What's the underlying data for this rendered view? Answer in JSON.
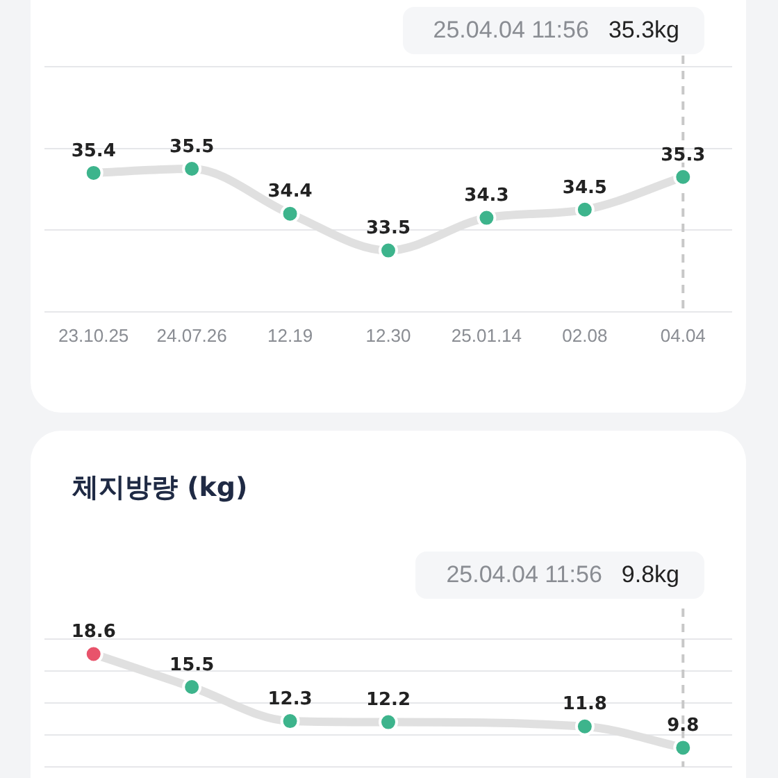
{
  "chart_data": [
    {
      "type": "line",
      "categories": [
        "23.10.25",
        "24.07.26",
        "12.19",
        "12.30",
        "25.01.14",
        "02.08",
        "04.04"
      ],
      "series": [
        {
          "color": "#e0e0e0",
          "colors": [
            "#3db48c",
            "#3db48c",
            "#3db48c",
            "#3db48c",
            "#3db48c",
            "#3db48c",
            "#3db48c"
          ],
          "values": [
            35.4,
            35.5,
            34.4,
            33.5,
            34.3,
            34.5,
            35.3
          ]
        }
      ],
      "ylim": [
        32,
        38
      ],
      "yticks": [
        {
          "value": 32,
          "label": null
        },
        {
          "value": 34,
          "label": null
        },
        {
          "value": 36,
          "label": null
        },
        {
          "value": 38,
          "label": null
        }
      ],
      "grid": "y",
      "tick_labels": "x",
      "legend": false,
      "marker": "circle",
      "line_style": "solid",
      "data_labels": true,
      "ref_lines": [
        {
          "axis": "x",
          "value": "04.04",
          "label": null,
          "color": "#c8c8c8",
          "line_style": "dashed"
        }
      ],
      "annotations": [
        "25.04.04 11:56",
        "35.3kg"
      ]
    },
    {
      "type": "line",
      "title": "체지방량 (kg)",
      "categories": [
        "23.10.25",
        "24.07.26",
        "12.19",
        "12.30",
        "25.01.14",
        "02.08",
        "04.04"
      ],
      "series": [
        {
          "color": "#e0e0e0",
          "colors": [
            "#e8536b",
            "#3db48c",
            "#3db48c",
            "#3db48c",
            "#3db48c",
            "#3db48c",
            "#3db48c"
          ],
          "values": [
            18.6,
            15.5,
            12.3,
            12.2,
            null,
            11.8,
            9.8
          ]
        }
      ],
      "ylim": [
        8,
        20
      ],
      "yticks": [
        {
          "value": 8,
          "label": null
        },
        {
          "value": 11,
          "label": null
        },
        {
          "value": 14,
          "label": null
        },
        {
          "value": 17,
          "label": null
        },
        {
          "value": 20,
          "label": null
        }
      ],
      "grid": "y",
      "tick_labels": false,
      "legend": false,
      "marker": "circle",
      "line_style": "solid",
      "data_labels": true,
      "ref_lines": [
        {
          "axis": "x",
          "value": "04.04",
          "label": null,
          "color": "#c8c8c8",
          "line_style": "dashed"
        }
      ],
      "annotations": [
        "25.04.04 11:56",
        "9.8kg"
      ]
    }
  ]
}
